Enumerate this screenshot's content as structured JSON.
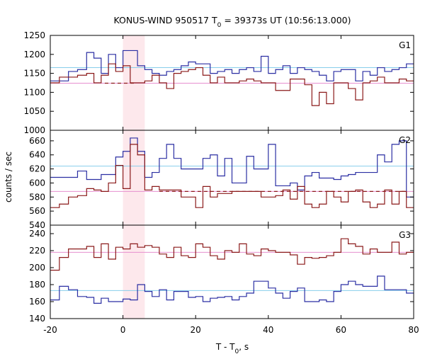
{
  "chart_data": {
    "type": "line",
    "title_prefix": "KONUS-WIND 950517 T",
    "title_sub": "0",
    "title_suffix": " = 39373s UT (10:56:13.000)",
    "xlabel_main": "T - T",
    "xlabel_sub": "0",
    "xlabel_suffix": ", s",
    "ylabel": "counts / sec",
    "xlim": [
      -20,
      80
    ],
    "x_ticks": [
      "-20",
      "0",
      "20",
      "40",
      "60",
      "80"
    ],
    "highlight_interval": [
      0,
      6
    ],
    "colors": {
      "blue": "#2b2fa3",
      "red": "#8b1a1a",
      "blue_bg": "#87ceeb",
      "red_bg": "#e68fcf",
      "highlight": "#fde8ec"
    },
    "bin_edges": [
      -20,
      -17.5,
      -15,
      -12.5,
      -10,
      -8,
      -6,
      -4,
      -2,
      0,
      2,
      4,
      6,
      8,
      10,
      12,
      14,
      16,
      18,
      20,
      22,
      24,
      26,
      28,
      30,
      32,
      34,
      36,
      38,
      40,
      42,
      44,
      46,
      48,
      50,
      52,
      54,
      56,
      58,
      60,
      62,
      64,
      66,
      68,
      70,
      72,
      74,
      76,
      78,
      80
    ],
    "panels": [
      {
        "label": "G1",
        "ylim": [
          1000,
          1250
        ],
        "y_ticks": [
          1000,
          1050,
          1100,
          1150,
          1200,
          1250
        ],
        "series": [
          {
            "color": "blue",
            "values": [
              1130,
              1130,
              1155,
              1160,
              1205,
              1190,
              1150,
              1200,
              1165,
              1210,
              1210,
              1170,
              1160,
              1150,
              1145,
              1155,
              1160,
              1170,
              1180,
              1175,
              1175,
              1150,
              1155,
              1160,
              1150,
              1160,
              1165,
              1155,
              1195,
              1150,
              1160,
              1170,
              1150,
              1165,
              1160,
              1155,
              1145,
              1130,
              1155,
              1160,
              1160,
              1130,
              1155,
              1145,
              1165,
              1155,
              1160,
              1165,
              1175
            ],
            "background": 1165,
            "background_color": "blue_bg"
          },
          {
            "color": "red",
            "values": [
              1125,
              1140,
              1140,
              1145,
              1150,
              1125,
              1145,
              1175,
              1155,
              1170,
              1125,
              1125,
              1130,
              1145,
              1125,
              1110,
              1150,
              1155,
              1160,
              1165,
              1145,
              1125,
              1140,
              1125,
              1125,
              1130,
              1135,
              1130,
              1125,
              1125,
              1105,
              1105,
              1135,
              1135,
              1120,
              1065,
              1100,
              1070,
              1125,
              1125,
              1110,
              1080,
              1125,
              1130,
              1140,
              1125,
              1125,
              1135,
              1130
            ],
            "background": 1124,
            "background_color": "red_bg",
            "dashed_segment": [
              -5,
              3
            ]
          }
        ]
      },
      {
        "label": "G2",
        "ylim": [
          540,
          675
        ],
        "y_ticks": [
          540,
          560,
          580,
          600,
          620,
          640,
          660
        ],
        "series": [
          {
            "color": "blue",
            "values": [
              608,
              608,
              608,
              617,
              605,
              605,
              612,
              612,
              637,
              645,
              664,
              645,
              608,
              615,
              635,
              655,
              635,
              620,
              620,
              620,
              635,
              640,
              610,
              635,
              600,
              600,
              638,
              620,
              620,
              655,
              596,
              596,
              600,
              590,
              610,
              615,
              607,
              607,
              605,
              610,
              612,
              615,
              615,
              615,
              640,
              630,
              655,
              660,
              580
            ],
            "background": 624,
            "background_color": "blue_bg"
          },
          {
            "color": "red",
            "values": [
              565,
              570,
              580,
              582,
              592,
              590,
              588,
              600,
              625,
              592,
              655,
              640,
              590,
              595,
              590,
              590,
              590,
              580,
              580,
              565,
              595,
              580,
              585,
              585,
              588,
              588,
              588,
              588,
              580,
              580,
              582,
              590,
              577,
              595,
              570,
              565,
              570,
              588,
              580,
              573,
              588,
              590,
              573,
              565,
              570,
              590,
              570,
              588,
              565
            ],
            "background": 588,
            "background_color": "red_bg",
            "dashed_segment": [
              10,
              78
            ]
          }
        ]
      },
      {
        "label": "G3",
        "ylim": [
          140,
          250
        ],
        "y_ticks": [
          140,
          160,
          180,
          200,
          220,
          240
        ],
        "series": [
          {
            "color": "red",
            "values": [
              197,
              212,
              222,
              222,
              225,
              212,
              228,
              210,
              224,
              222,
              228,
              224,
              226,
              224,
              216,
              212,
              224,
              214,
              212,
              228,
              224,
              214,
              210,
              220,
              218,
              228,
              216,
              214,
              222,
              220,
              218,
              218,
              215,
              204,
              212,
              211,
              212,
              214,
              218,
              234,
              228,
              225,
              216,
              222,
              218,
              218,
              230,
              216,
              218
            ],
            "background": 218,
            "background_color": "red_bg"
          },
          {
            "color": "blue",
            "values": [
              162,
              178,
              174,
              166,
              165,
              158,
              164,
              160,
              160,
              163,
              162,
              180,
              172,
              166,
              174,
              162,
              172,
              172,
              165,
              166,
              160,
              164,
              165,
              166,
              162,
              166,
              170,
              184,
              184,
              176,
              170,
              164,
              172,
              176,
              160,
              160,
              162,
              160,
              172,
              180,
              184,
              180,
              178,
              178,
              190,
              174,
              174,
              174,
              170
            ],
            "background": 173,
            "background_color": "blue_bg"
          }
        ]
      }
    ]
  }
}
